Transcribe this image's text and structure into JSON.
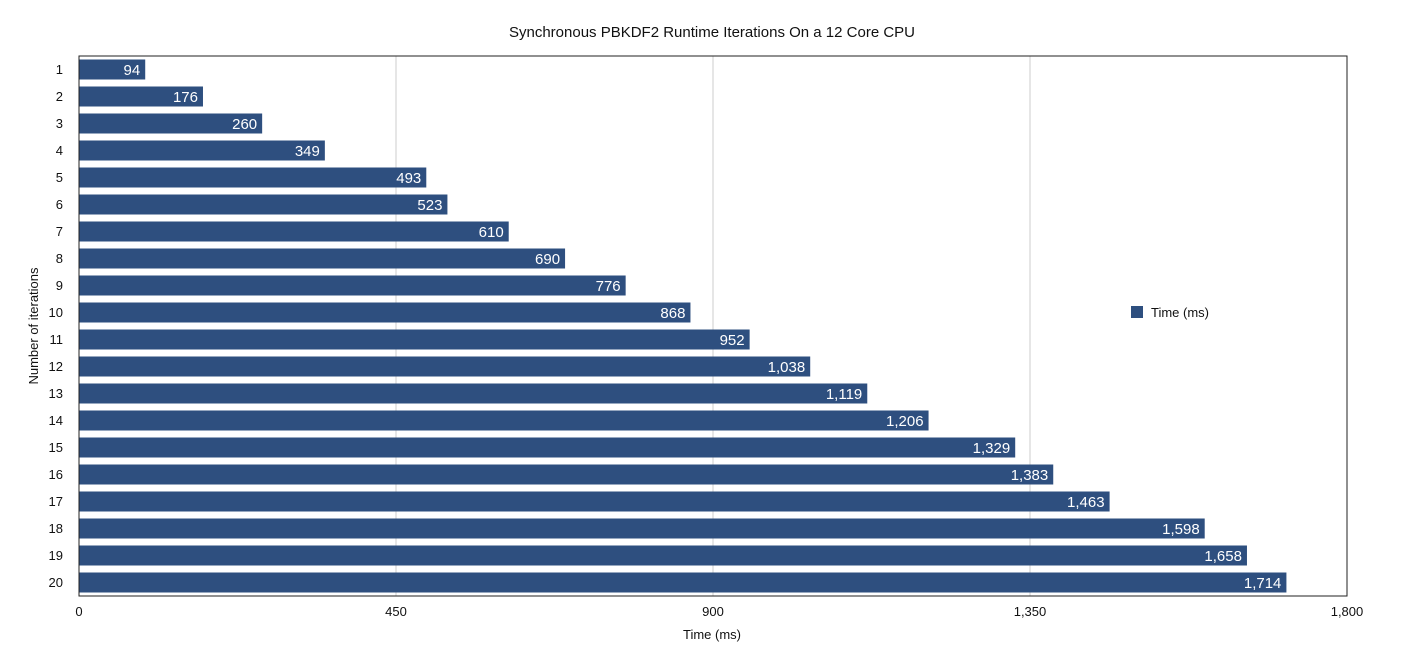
{
  "chart_data": {
    "type": "bar",
    "orientation": "horizontal",
    "title": "Synchronous PBKDF2 Runtime Iterations On a 12 Core CPU",
    "xlabel": "Time (ms)",
    "ylabel": "Number of iterations",
    "xlim": [
      0,
      1800
    ],
    "xticks": [
      0,
      450,
      900,
      1350,
      1800
    ],
    "xtick_labels": [
      "0",
      "450",
      "900",
      "1,350",
      "1,800"
    ],
    "grid": true,
    "legend_position": "right",
    "categories": [
      "1",
      "2",
      "3",
      "4",
      "5",
      "6",
      "7",
      "8",
      "9",
      "10",
      "11",
      "12",
      "13",
      "14",
      "15",
      "16",
      "17",
      "18",
      "19",
      "20"
    ],
    "series": [
      {
        "name": "Time (ms)",
        "color": "#2e4f7f",
        "values": [
          94,
          176,
          260,
          349,
          493,
          523,
          610,
          690,
          776,
          868,
          952,
          1038,
          1119,
          1206,
          1329,
          1383,
          1463,
          1598,
          1658,
          1714
        ],
        "value_labels": [
          "94",
          "176",
          "260",
          "349",
          "493",
          "523",
          "610",
          "690",
          "776",
          "868",
          "952",
          "1,038",
          "1,119",
          "1,206",
          "1,329",
          "1,383",
          "1,463",
          "1,598",
          "1,658",
          "1,714"
        ]
      }
    ]
  }
}
